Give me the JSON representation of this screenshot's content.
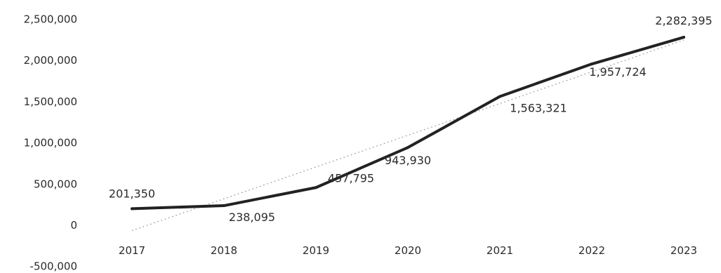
{
  "chart_data": {
    "type": "line",
    "title": "",
    "xlabel": "",
    "ylabel": "",
    "categories": [
      "2017",
      "2018",
      "2019",
      "2020",
      "2021",
      "2022",
      "2023"
    ],
    "series": [
      {
        "values": [
          201350,
          238095,
          457795,
          943930,
          1563321,
          1957724,
          2282395
        ],
        "labels": [
          "201,350",
          "238,095",
          "457,795",
          "943,930",
          "1,563,321",
          "1,957,724",
          "2,282,395"
        ],
        "color": "#222222"
      }
    ],
    "trendline": {
      "type": "linear",
      "style": "dotted",
      "color": "#888888"
    },
    "ylim": [
      -500000,
      2500000
    ],
    "yticks": [
      -500000,
      0,
      500000,
      1000000,
      1500000,
      2000000,
      2500000
    ],
    "ytick_labels": [
      "-500,000",
      "0",
      "500,000",
      "1,000,000",
      "1,500,000",
      "2,000,000",
      "2,500,000"
    ],
    "grid": false,
    "legend": "none"
  }
}
